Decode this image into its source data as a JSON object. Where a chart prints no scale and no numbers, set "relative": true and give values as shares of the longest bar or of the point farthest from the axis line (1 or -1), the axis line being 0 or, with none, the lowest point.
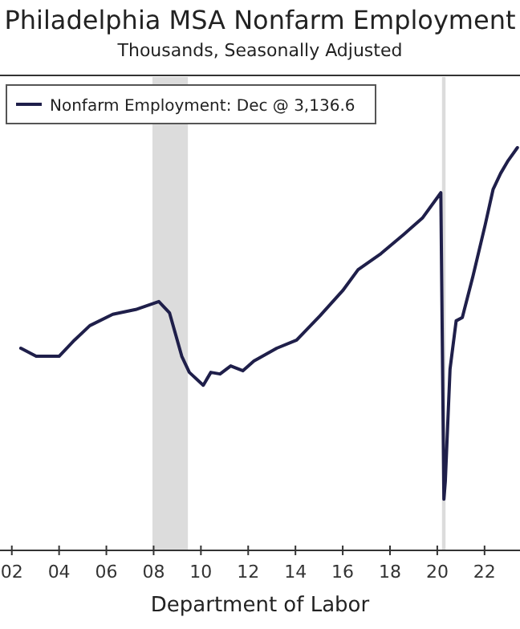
{
  "chart_data": {
    "type": "line",
    "title": "Philadelphia MSA Nonfarm Employment",
    "subtitle": "Thousands, Seasonally Adjusted",
    "annotations": [
      "Department of Labor"
    ],
    "relative": true,
    "legend": "top left",
    "line_style": "solid",
    "xlim": [
      2001.5,
      2023.5
    ],
    "xticks": [
      {
        "value": 2002,
        "label": "02"
      },
      {
        "value": 2004,
        "label": "04"
      },
      {
        "value": 2006,
        "label": "06"
      },
      {
        "value": 2008,
        "label": "08"
      },
      {
        "value": 2010,
        "label": "10"
      },
      {
        "value": 2012,
        "label": "12"
      },
      {
        "value": 2014,
        "label": "14"
      },
      {
        "value": 2016,
        "label": "16"
      },
      {
        "value": 2018,
        "label": "18"
      },
      {
        "value": 2020,
        "label": "20"
      },
      {
        "value": 2022,
        "label": "22"
      }
    ],
    "bands": [
      {
        "axis": "x",
        "from": 2007.95,
        "to": 2009.45,
        "color": "#dcdcdc"
      },
      {
        "axis": "x",
        "from": 2020.2,
        "to": 2020.35,
        "color": "#dcdcdc"
      }
    ],
    "x": [
      2002.38,
      2003.03,
      2004.0,
      2004.65,
      2005.3,
      2006.27,
      2007.24,
      2008.22,
      2008.67,
      2009.19,
      2009.51,
      2010.1,
      2010.42,
      2010.81,
      2011.26,
      2011.78,
      2012.24,
      2013.21,
      2014.05,
      2015.03,
      2016.0,
      2016.65,
      2017.62,
      2018.59,
      2019.37,
      2020.15,
      2020.28,
      2020.34,
      2020.54,
      2020.8,
      2021.06,
      2021.51,
      2022.03,
      2022.36,
      2022.68,
      2023.0,
      2023.39
    ],
    "series": [
      {
        "name": "Nonfarm Employment: Dec @ 3,136.6",
        "color": "#1f1f4a",
        "values": [
          0.502,
          0.482,
          0.482,
          0.522,
          0.558,
          0.586,
          0.598,
          0.618,
          0.59,
          0.482,
          0.442,
          0.41,
          0.442,
          0.438,
          0.458,
          0.446,
          0.47,
          0.502,
          0.522,
          0.582,
          0.645,
          0.697,
          0.737,
          0.785,
          0.825,
          0.888,
          0.127,
          0.171,
          0.45,
          0.57,
          0.578,
          0.681,
          0.809,
          0.896,
          0.936,
          0.968,
          1
        ]
      }
    ]
  }
}
